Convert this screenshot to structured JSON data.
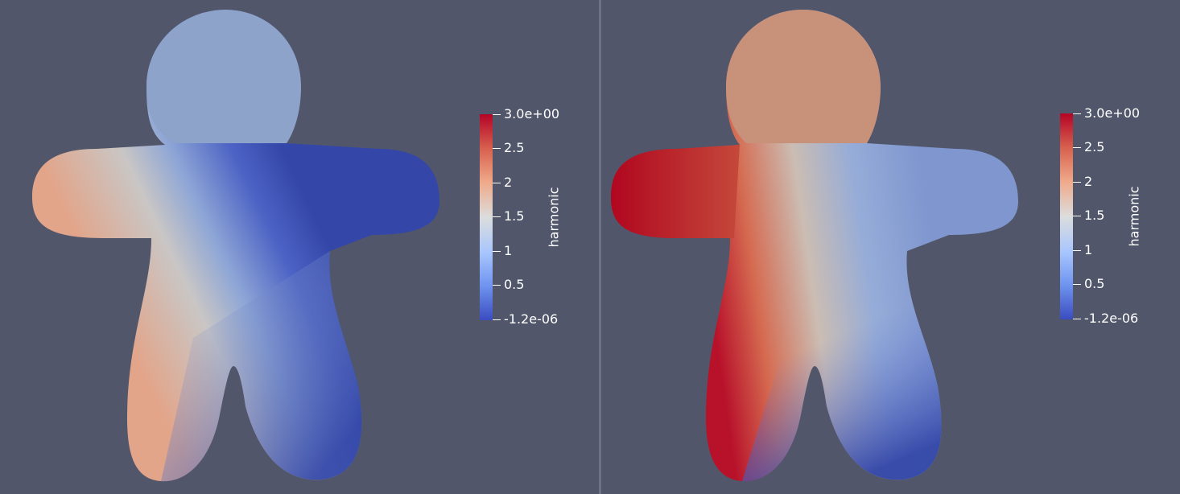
{
  "views": [
    {
      "id": "left",
      "colorbar": {
        "title": "harmonic",
        "labels": [
          "3.0e+00",
          "2.5",
          "2",
          "1.5",
          "1",
          "0.5",
          "-1.2e-06"
        ]
      }
    },
    {
      "id": "right",
      "colorbar": {
        "title": "harmonic",
        "labels": [
          "3.0e+00",
          "2.5",
          "2",
          "1.5",
          "1",
          "0.5",
          "-1.2e-06"
        ]
      }
    }
  ],
  "colors": {
    "background": "#51566b",
    "colormap_top": "#b40426",
    "colormap_mid": "#dcdddd",
    "colormap_bottom": "#3b4cc0"
  }
}
